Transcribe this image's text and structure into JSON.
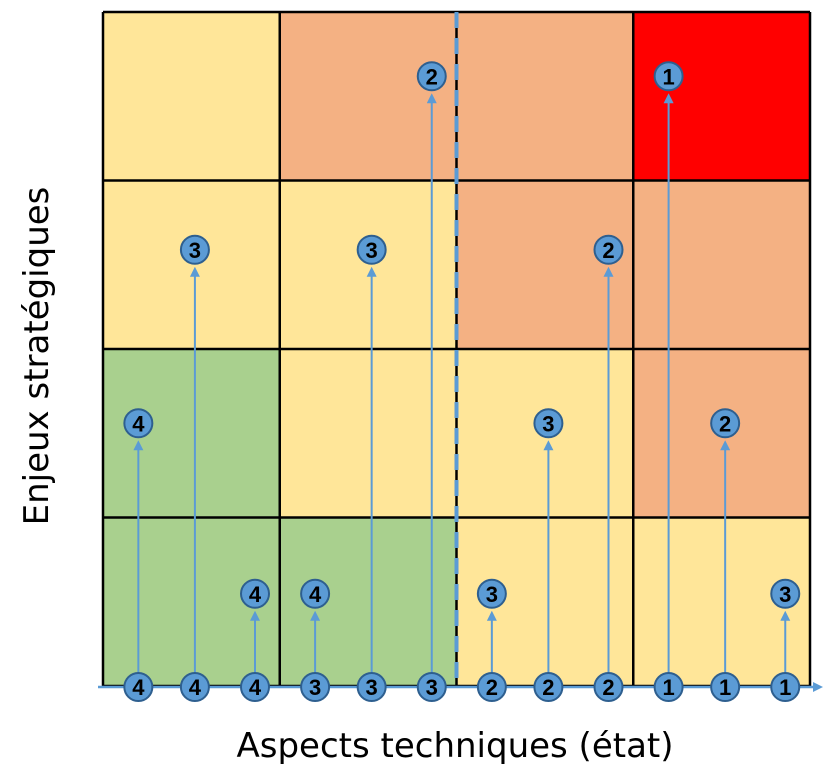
{
  "axes": {
    "x_title": "Aspects techniques (état)",
    "y_title": "Enjeux stratégiques"
  },
  "colors": {
    "green": "#a9d08e",
    "yellow": "#ffe699",
    "orange": "#f4b183",
    "red": "#ff0000",
    "marker_fill": "#5b9bd5",
    "marker_stroke": "#2e5f8f",
    "arrow": "#5b9bd5",
    "grid": "#000000",
    "divider": "#5b9bd5"
  },
  "grid": {
    "rows_top_to_bottom": [
      [
        "yellow",
        "orange",
        "orange",
        "red"
      ],
      [
        "yellow",
        "yellow",
        "orange",
        "orange"
      ],
      [
        "green",
        "yellow",
        "yellow",
        "orange"
      ],
      [
        "green",
        "green",
        "yellow",
        "yellow"
      ]
    ]
  },
  "markers": [
    {
      "column": 1,
      "position": 1,
      "base_label": "4",
      "target_row": 2,
      "target_label": "4"
    },
    {
      "column": 1,
      "position": 2,
      "base_label": "4",
      "target_row": 3,
      "target_label": "3"
    },
    {
      "column": 1,
      "position": 3,
      "base_label": "4",
      "target_row": 1,
      "target_label": "4"
    },
    {
      "column": 2,
      "position": 1,
      "base_label": "3",
      "target_row": 1,
      "target_label": "4"
    },
    {
      "column": 2,
      "position": 2,
      "base_label": "3",
      "target_row": 3,
      "target_label": "3"
    },
    {
      "column": 2,
      "position": 3,
      "base_label": "3",
      "target_row": 4,
      "target_label": "2"
    },
    {
      "column": 3,
      "position": 1,
      "base_label": "2",
      "target_row": 1,
      "target_label": "3"
    },
    {
      "column": 3,
      "position": 2,
      "base_label": "2",
      "target_row": 2,
      "target_label": "3"
    },
    {
      "column": 3,
      "position": 3,
      "base_label": "2",
      "target_row": 3,
      "target_label": "2"
    },
    {
      "column": 4,
      "position": 1,
      "base_label": "1",
      "target_row": 4,
      "target_label": "1"
    },
    {
      "column": 4,
      "position": 2,
      "base_label": "1",
      "target_row": 2,
      "target_label": "2"
    },
    {
      "column": 4,
      "position": 3,
      "base_label": "1",
      "target_row": 1,
      "target_label": "3"
    }
  ]
}
